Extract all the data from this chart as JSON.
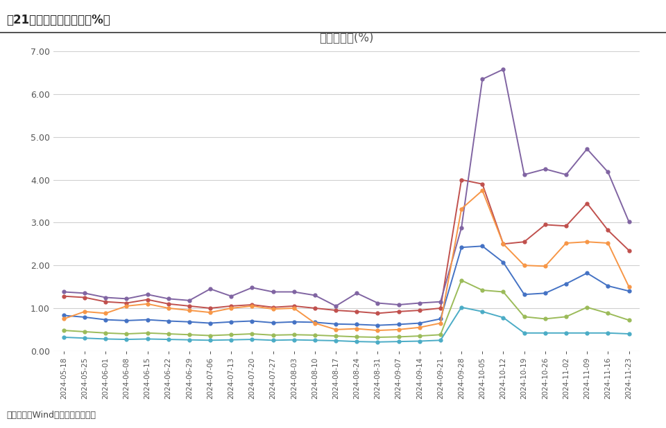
{
  "title_top": "图21：主要指数换手率（%）",
  "title_chart": "周均换手率(%)",
  "source_text": "资料来源：Wind，中原证券研究所",
  "dates": [
    "2024-05-18",
    "2024-05-25",
    "2024-06-01",
    "2024-06-08",
    "2024-06-15",
    "2024-06-22",
    "2024-06-29",
    "2024-07-06",
    "2024-07-13",
    "2024-07-20",
    "2024-07-27",
    "2024-08-03",
    "2024-08-10",
    "2024-08-17",
    "2024-08-24",
    "2024-08-31",
    "2024-09-07",
    "2024-09-14",
    "2024-09-21",
    "2024-09-28",
    "2024-10-05",
    "2024-10-12",
    "2024-10-19",
    "2024-10-26",
    "2024-11-02",
    "2024-11-09",
    "2024-11-16",
    "2024-11-23"
  ],
  "series": {
    "上证综指": {
      "color": "#4472C4",
      "values": [
        0.83,
        0.79,
        0.73,
        0.71,
        0.73,
        0.7,
        0.68,
        0.65,
        0.68,
        0.7,
        0.66,
        0.68,
        0.67,
        0.63,
        0.62,
        0.6,
        0.62,
        0.65,
        0.75,
        2.42,
        2.45,
        2.07,
        1.32,
        1.35,
        1.57,
        1.82,
        1.52,
        1.4
      ]
    },
    "深证成指": {
      "color": "#C0504D",
      "values": [
        1.28,
        1.25,
        1.15,
        1.12,
        1.2,
        1.1,
        1.05,
        1.0,
        1.05,
        1.08,
        1.02,
        1.05,
        1.0,
        0.95,
        0.92,
        0.88,
        0.92,
        0.95,
        1.0,
        4.0,
        3.9,
        2.5,
        2.55,
        2.95,
        2.92,
        3.45,
        2.82,
        2.35
      ]
    },
    "沪深300": {
      "color": "#9BBB59",
      "values": [
        0.48,
        0.45,
        0.42,
        0.4,
        0.42,
        0.4,
        0.38,
        0.36,
        0.38,
        0.4,
        0.37,
        0.38,
        0.37,
        0.35,
        0.33,
        0.32,
        0.33,
        0.35,
        0.38,
        1.65,
        1.42,
        1.38,
        0.8,
        0.75,
        0.8,
        1.02,
        0.88,
        0.72
      ]
    },
    "创业板": {
      "color": "#8064A2",
      "values": [
        1.38,
        1.35,
        1.25,
        1.22,
        1.32,
        1.22,
        1.18,
        1.45,
        1.28,
        1.48,
        1.38,
        1.38,
        1.3,
        1.05,
        1.35,
        1.12,
        1.08,
        1.12,
        1.15,
        2.88,
        6.35,
        6.58,
        4.12,
        4.25,
        4.12,
        4.72,
        4.18,
        3.02
      ]
    },
    "上证50": {
      "color": "#4BACC6",
      "values": [
        0.32,
        0.3,
        0.28,
        0.27,
        0.28,
        0.27,
        0.26,
        0.25,
        0.26,
        0.27,
        0.25,
        0.26,
        0.25,
        0.24,
        0.22,
        0.21,
        0.22,
        0.23,
        0.25,
        1.02,
        0.92,
        0.78,
        0.42,
        0.42,
        0.42,
        0.42,
        0.42,
        0.4
      ]
    },
    "科创板50": {
      "color": "#F79646",
      "values": [
        0.75,
        0.92,
        0.88,
        1.05,
        1.1,
        1.0,
        0.95,
        0.9,
        1.0,
        1.05,
        0.98,
        1.0,
        0.65,
        0.5,
        0.52,
        0.48,
        0.5,
        0.55,
        0.65,
        3.32,
        3.75,
        2.5,
        2.0,
        1.98,
        2.52,
        2.55,
        2.52,
        1.5
      ]
    }
  },
  "ylim": [
    0,
    7.0
  ],
  "yticks": [
    0.0,
    1.0,
    2.0,
    3.0,
    4.0,
    5.0,
    6.0,
    7.0
  ],
  "background_color": "#ffffff",
  "grid_color": "#d0d0d0"
}
